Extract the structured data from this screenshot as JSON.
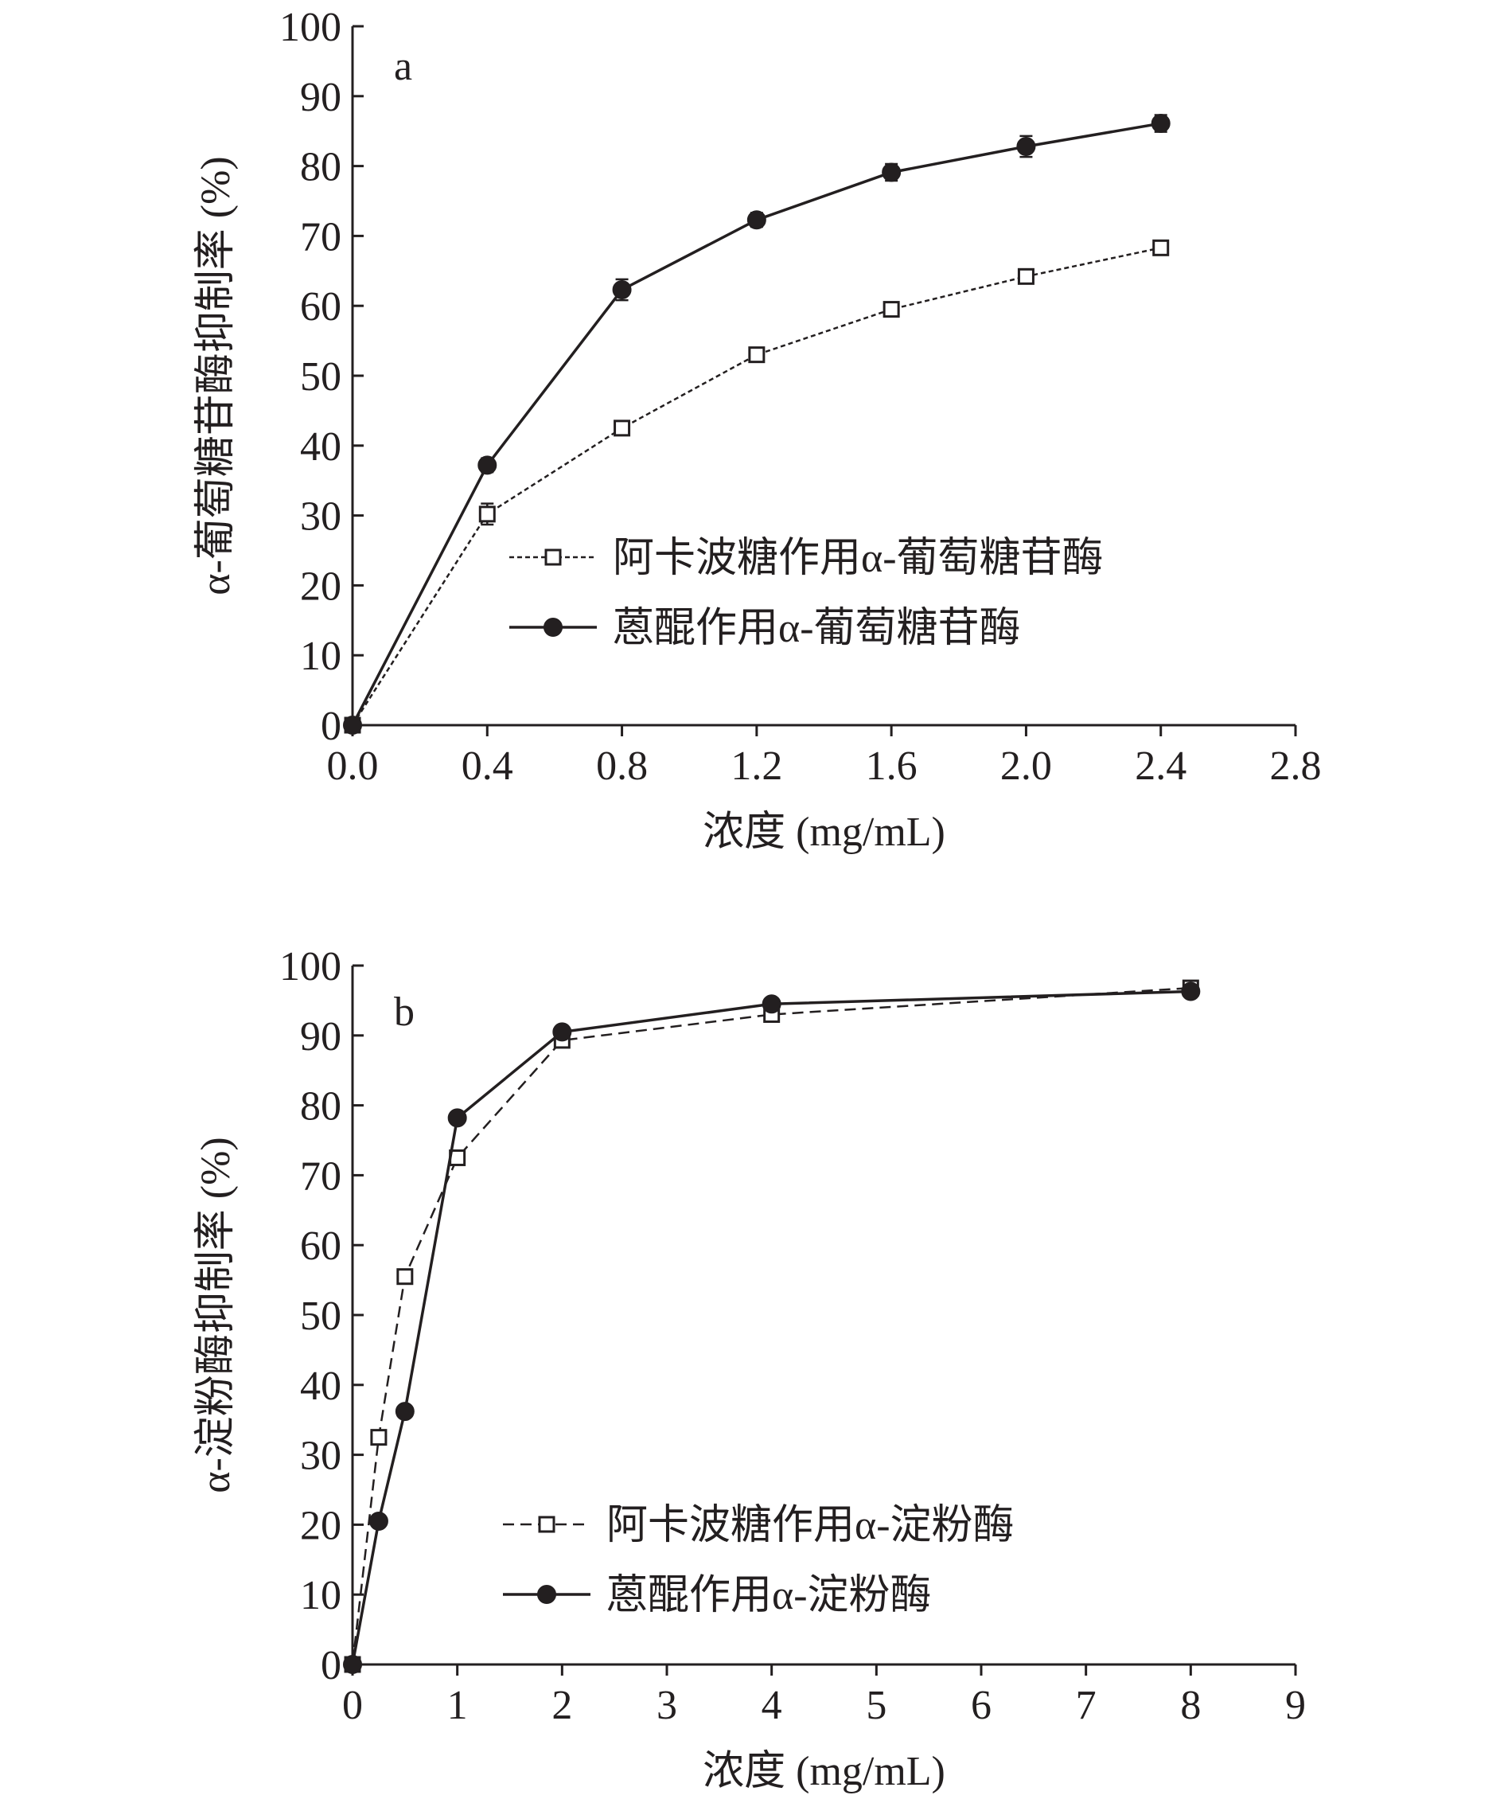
{
  "chart_data": [
    {
      "type": "line",
      "panel_label": "a",
      "xlabel": "浓度 (mg/mL)",
      "ylabel": "α-葡萄糖苷酶抑制率 (%)",
      "xlim": [
        0,
        2.8
      ],
      "ylim": [
        0,
        100
      ],
      "x_ticks": [
        "0.0",
        "0.4",
        "0.8",
        "1.2",
        "1.6",
        "2.0",
        "2.4",
        "2.8"
      ],
      "y_ticks": [
        "0",
        "10",
        "20",
        "30",
        "40",
        "50",
        "60",
        "70",
        "80",
        "90",
        "100"
      ],
      "x": [
        0,
        0.4,
        0.8,
        1.2,
        1.6,
        2.0,
        2.4
      ],
      "legend_position": "center-right",
      "series": [
        {
          "name": "阿卡波糖作用α-葡萄糖苷酶",
          "values": [
            0,
            30.2,
            42.5,
            53.0,
            59.5,
            64.2,
            68.3
          ],
          "errors": [
            0,
            1.5,
            0.8,
            0.8,
            0.7,
            0.7,
            1.0
          ],
          "marker": "open-square",
          "line": "dashed",
          "color": "#231f20"
        },
        {
          "name": "蒽醌作用α-葡萄糖苷酶",
          "values": [
            0,
            37.2,
            62.3,
            72.3,
            79.1,
            82.8,
            86.1
          ],
          "errors": [
            0,
            1.0,
            1.5,
            1.0,
            1.2,
            1.5,
            1.2
          ],
          "marker": "filled-circle",
          "line": "solid",
          "color": "#231f20"
        }
      ]
    },
    {
      "type": "line",
      "panel_label": "b",
      "xlabel": "浓度 (mg/mL)",
      "ylabel": "α-淀粉酶抑制率 (%)",
      "xlim": [
        0,
        9
      ],
      "ylim": [
        0,
        100
      ],
      "x_ticks": [
        "0",
        "1",
        "2",
        "3",
        "4",
        "5",
        "6",
        "7",
        "8",
        "9"
      ],
      "y_ticks": [
        "0",
        "10",
        "20",
        "30",
        "40",
        "50",
        "60",
        "70",
        "80",
        "90",
        "100"
      ],
      "x": [
        0,
        0.25,
        0.5,
        1,
        2,
        4,
        8
      ],
      "legend_position": "bottom-center",
      "series": [
        {
          "name": "阿卡波糖作用α-淀粉酶",
          "values": [
            0,
            32.5,
            55.5,
            72.5,
            89.3,
            93.0,
            96.8
          ],
          "marker": "open-square",
          "line": "dashed",
          "color": "#231f20"
        },
        {
          "name": "蒽醌作用α-淀粉酶",
          "values": [
            0,
            20.5,
            36.2,
            78.2,
            90.5,
            94.5,
            96.3
          ],
          "marker": "filled-circle",
          "line": "solid",
          "color": "#231f20"
        }
      ]
    }
  ]
}
